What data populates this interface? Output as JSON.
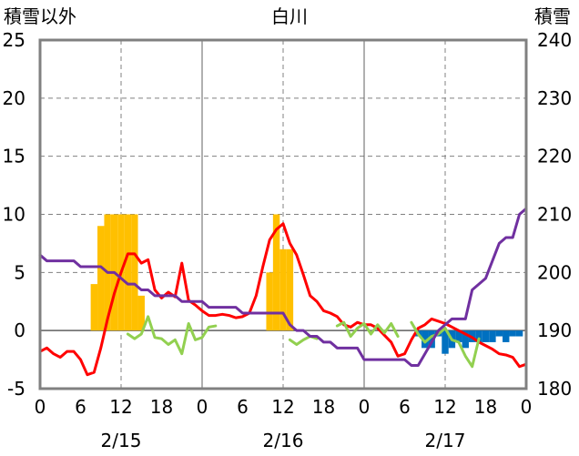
{
  "chart_data": {
    "type": "bar+line",
    "title": "白川",
    "left_axis_label": "積雪以外",
    "right_axis_label": "積雪",
    "left_ylim": [
      -5,
      25
    ],
    "left_ticks": [
      -5,
      0,
      5,
      10,
      15,
      20,
      25
    ],
    "right_ylim": [
      180,
      240
    ],
    "right_ticks": [
      180,
      190,
      200,
      210,
      220,
      230,
      240
    ],
    "x_hour_ticks": [
      0,
      6,
      12,
      18,
      0,
      6,
      12,
      18,
      0,
      6,
      12,
      18,
      0
    ],
    "x_tick_labels": [
      "0",
      "6",
      "12",
      "18",
      "0",
      "6",
      "12",
      "18",
      "0",
      "6",
      "12",
      "18",
      "0"
    ],
    "date_labels": [
      {
        "label": "2/15",
        "hour": 12
      },
      {
        "label": "2/16",
        "hour": 36
      },
      {
        "label": "2/17",
        "hour": 60
      }
    ],
    "grid": "dashed",
    "colors": {
      "snowfall_bar": "#ffc000",
      "snow_decrease_bar": "#0070c0",
      "temperature": "#ff0000",
      "other_line": "#92d050",
      "snow_depth": "#7030a0",
      "grid": "#808080",
      "frame": "#808080"
    },
    "series": [
      {
        "kind": "bar_up",
        "axis": "left",
        "color": "#ffc000",
        "hours": [
          8,
          9,
          10,
          11,
          12,
          13,
          14,
          15,
          34,
          35,
          36,
          37
        ],
        "values": [
          4,
          9,
          10,
          10,
          10,
          10,
          10,
          3,
          5,
          10,
          7,
          7
        ]
      },
      {
        "kind": "bar_down",
        "axis": "left",
        "color": "#0070c0",
        "hours": [
          56,
          57,
          58,
          59,
          60,
          61,
          62,
          63,
          64,
          65,
          66,
          67,
          68,
          69,
          70,
          71
        ],
        "values": [
          -0.5,
          -1.5,
          -1.5,
          -0.5,
          -2,
          -1.5,
          -1,
          -1.5,
          -1,
          -1,
          -1,
          -1,
          -0.5,
          -1,
          -0.5,
          -0.5
        ]
      },
      {
        "kind": "line",
        "axis": "left",
        "color": "#ff0000",
        "hours": [
          0,
          1,
          2,
          3,
          4,
          5,
          6,
          7,
          8,
          9,
          10,
          11,
          12,
          13,
          14,
          15,
          16,
          17,
          18,
          19,
          20,
          21,
          22,
          23,
          24,
          25,
          26,
          27,
          28,
          29,
          30,
          31,
          32,
          33,
          34,
          35,
          36,
          37,
          38,
          39,
          40,
          41,
          42,
          43,
          44,
          45,
          46,
          47,
          48,
          49,
          50,
          51,
          52,
          53,
          54,
          55,
          56,
          57,
          58,
          59,
          60,
          61,
          62,
          63,
          64,
          65,
          66,
          67,
          68,
          69,
          70,
          71,
          72
        ],
        "values": [
          -1.8,
          -1.5,
          -2,
          -2.3,
          -1.8,
          -1.8,
          -2.5,
          -3.8,
          -3.6,
          -1.5,
          1,
          3.2,
          5,
          6.6,
          6.6,
          5.8,
          6.1,
          3.5,
          2.8,
          3.3,
          2.9,
          5.8,
          2.6,
          2.2,
          1.7,
          1.3,
          1.3,
          1.4,
          1.3,
          1.1,
          1.2,
          1.5,
          3,
          5.5,
          7.8,
          8.7,
          9.2,
          7.5,
          6.5,
          4.8,
          3,
          2.5,
          1.7,
          1.5,
          1.2,
          0.5,
          0.3,
          0.7,
          0.5,
          0.5,
          0.2,
          -0.4,
          -1,
          -2.2,
          -2,
          -0.8,
          0.2,
          0.5,
          1,
          0.8,
          0.6,
          0.3,
          0,
          -0.3,
          -0.6,
          -1,
          -1.3,
          -1.6,
          -2,
          -2.1,
          -2.3,
          -3.1,
          -2.9
        ]
      },
      {
        "kind": "line",
        "axis": "left",
        "color": "#92d050",
        "segments": [
          {
            "hours": [
              13,
              14,
              15,
              16,
              17,
              18,
              19,
              20,
              21,
              22,
              23,
              24,
              25,
              26
            ],
            "values": [
              -0.3,
              -0.7,
              -0.3,
              1.2,
              -0.6,
              -0.7,
              -1.2,
              -0.8,
              -2,
              0.6,
              -0.8,
              -0.6,
              0.3,
              0.4
            ]
          },
          {
            "hours": [
              37,
              38,
              39,
              40,
              41
            ],
            "values": [
              -0.8,
              -1.2,
              -0.8,
              -0.5,
              -0.7
            ]
          },
          {
            "hours": [
              44,
              45,
              46,
              47,
              48,
              49,
              50,
              51,
              52,
              53
            ],
            "values": [
              0.4,
              0.7,
              -0.5,
              0.2,
              0.6,
              -0.3,
              0.5,
              -0.2,
              0.6,
              -0.5
            ]
          },
          {
            "hours": [
              55,
              56,
              57,
              58,
              59,
              60,
              61,
              62,
              63,
              64,
              65
            ],
            "values": [
              0.7,
              -0.3,
              -1,
              -0.5,
              -0.3,
              0.2,
              -0.8,
              -1,
              -2.2,
              -3.1,
              -0.7
            ]
          }
        ]
      },
      {
        "kind": "line",
        "axis": "right",
        "color": "#7030a0",
        "hours": [
          0,
          1,
          2,
          3,
          4,
          5,
          6,
          7,
          8,
          9,
          10,
          11,
          12,
          13,
          14,
          15,
          16,
          17,
          18,
          19,
          20,
          21,
          22,
          23,
          24,
          25,
          26,
          27,
          28,
          29,
          30,
          31,
          32,
          33,
          34,
          35,
          36,
          37,
          38,
          39,
          40,
          41,
          42,
          43,
          44,
          45,
          46,
          47,
          48,
          49,
          50,
          51,
          52,
          53,
          54,
          55,
          56,
          57,
          58,
          59,
          60,
          61,
          62,
          63,
          64,
          65,
          66,
          67,
          68,
          69,
          70,
          71,
          72
        ],
        "values": [
          203,
          202,
          202,
          202,
          202,
          202,
          201,
          201,
          201,
          201,
          200,
          200,
          199,
          198,
          198,
          197,
          197,
          196,
          196,
          196,
          196,
          195,
          195,
          195,
          195,
          194,
          194,
          194,
          194,
          194,
          193,
          193,
          193,
          193,
          193,
          193,
          193,
          191,
          190,
          190,
          189,
          189,
          188,
          188,
          187,
          187,
          187,
          187,
          185,
          185,
          185,
          185,
          185,
          185,
          185,
          184,
          184,
          186,
          188,
          190,
          191,
          192,
          192,
          192,
          197,
          198,
          199,
          202,
          205,
          206,
          206,
          210,
          211
        ]
      }
    ]
  }
}
